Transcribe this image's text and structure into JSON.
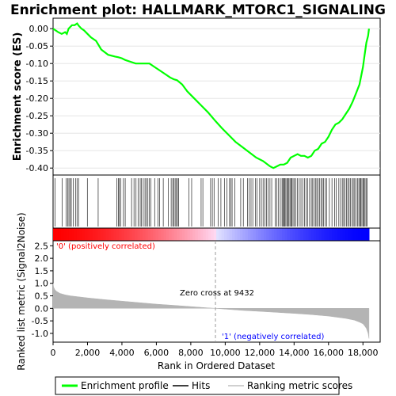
{
  "chart_data": {
    "type": "line",
    "title": "Enrichment plot: HALLMARK_MTORC1_SIGNALING",
    "top_panel": {
      "ylabel": "Enrichment score (ES)",
      "ylim": [
        -0.42,
        0.03
      ],
      "yticks": [
        0.0,
        -0.05,
        -0.1,
        -0.15,
        -0.2,
        -0.25,
        -0.3,
        -0.35,
        -0.4
      ],
      "ytick_labels": [
        "0.00",
        "-0.05",
        "-0.10",
        "-0.15",
        "-0.20",
        "-0.25",
        "-0.30",
        "-0.35",
        "-0.40"
      ],
      "series": [
        {
          "name": "Enrichment profile",
          "color": "#00ff00",
          "x": [
            0,
            300,
            500,
            700,
            800,
            900,
            1000,
            1100,
            1250,
            1400,
            1500,
            1650,
            1800,
            2000,
            2200,
            2500,
            2800,
            3200,
            3600,
            3800,
            4000,
            4200,
            4500,
            4800,
            5000,
            5300,
            5600,
            5900,
            6200,
            6500,
            6800,
            7000,
            7200,
            7500,
            7800,
            8200,
            8600,
            9000,
            9432,
            9800,
            10200,
            10600,
            11000,
            11400,
            11800,
            12200,
            12600,
            12800,
            13000,
            13200,
            13400,
            13600,
            13800,
            14000,
            14200,
            14400,
            14600,
            14800,
            15000,
            15200,
            15400,
            15600,
            15800,
            16000,
            16200,
            16400,
            16600,
            16800,
            17000,
            17200,
            17400,
            17600,
            17800,
            17900,
            18000,
            18100,
            18200,
            18300,
            18350
          ],
          "y": [
            0.0,
            -0.01,
            -0.015,
            -0.01,
            -0.015,
            0.0,
            0.005,
            0.01,
            0.01,
            0.015,
            0.008,
            0.0,
            -0.005,
            -0.015,
            -0.025,
            -0.035,
            -0.06,
            -0.075,
            -0.08,
            -0.082,
            -0.085,
            -0.09,
            -0.095,
            -0.1,
            -0.1,
            -0.1,
            -0.1,
            -0.11,
            -0.12,
            -0.13,
            -0.14,
            -0.145,
            -0.148,
            -0.16,
            -0.18,
            -0.2,
            -0.22,
            -0.24,
            -0.265,
            -0.285,
            -0.305,
            -0.325,
            -0.34,
            -0.355,
            -0.37,
            -0.38,
            -0.395,
            -0.4,
            -0.395,
            -0.39,
            -0.39,
            -0.385,
            -0.37,
            -0.365,
            -0.36,
            -0.365,
            -0.365,
            -0.37,
            -0.365,
            -0.35,
            -0.345,
            -0.33,
            -0.325,
            -0.31,
            -0.29,
            -0.275,
            -0.27,
            -0.26,
            -0.245,
            -0.23,
            -0.21,
            -0.185,
            -0.16,
            -0.135,
            -0.11,
            -0.075,
            -0.04,
            -0.02,
            0.0
          ]
        }
      ]
    },
    "hits": {
      "name": "Hits",
      "color": "#000000",
      "positions": [
        120,
        520,
        760,
        850,
        920,
        990,
        1060,
        1180,
        1300,
        1390,
        1480,
        1990,
        2620,
        3700,
        3790,
        3850,
        3930,
        4090,
        4190,
        4560,
        4700,
        4820,
        4950,
        5060,
        5130,
        5240,
        5340,
        5420,
        5510,
        5590,
        5680,
        5900,
        6100,
        6190,
        6400,
        6700,
        6860,
        6950,
        7020,
        7090,
        7160,
        7230,
        7290,
        7900,
        8050,
        8600,
        8700,
        9150,
        9250,
        9350,
        9600,
        9750,
        9950,
        10100,
        10250,
        10320,
        10400,
        10550,
        10900,
        11050,
        11300,
        11400,
        11500,
        11600,
        11750,
        11850,
        12000,
        12100,
        12200,
        12300,
        12400,
        12500,
        12600,
        12700,
        12900,
        13000,
        13100,
        13200,
        13300,
        13350,
        13400,
        13460,
        13520,
        13580,
        13640,
        13700,
        13760,
        13820,
        13880,
        13940,
        14000,
        14100,
        14200,
        14300,
        14400,
        14500,
        14600,
        14700,
        14800,
        14900,
        15000,
        15080,
        15160,
        15240,
        15320,
        15400,
        15480,
        15560,
        15640,
        15720,
        15800,
        15900,
        16050,
        16200,
        16350,
        16450,
        16600,
        16700,
        16800,
        16880,
        16960,
        17040,
        17120,
        17200,
        17280,
        17360,
        17440,
        17520,
        17600,
        17680,
        17760,
        17820,
        17880,
        17940,
        18000,
        18060,
        18120,
        18180,
        18240
      ]
    },
    "ranked_metric": {
      "name": "Ranking metric scores",
      "ylabel": "Ranked list metric (Signal2Noise)",
      "ylim": [
        -1.35,
        2.7
      ],
      "yticks": [
        2.5,
        2.0,
        1.5,
        1.0,
        0.5,
        0.0,
        -0.5,
        -1.0
      ],
      "ytick_labels": [
        "2.5",
        "2.0",
        "1.5",
        "1.0",
        "0.5",
        "0.0",
        "-0.5",
        "-1.0"
      ],
      "x": [
        0,
        30,
        100,
        200,
        400,
        700,
        1000,
        2000,
        3000,
        4000,
        5000,
        6000,
        7000,
        8000,
        9000,
        9432,
        10000,
        11000,
        12000,
        13000,
        14000,
        15000,
        16000,
        17000,
        17500,
        17800,
        18000,
        18100,
        18200,
        18300,
        18350
      ],
      "values": [
        1.0,
        0.85,
        0.75,
        0.68,
        0.6,
        0.54,
        0.5,
        0.42,
        0.35,
        0.29,
        0.23,
        0.17,
        0.12,
        0.07,
        0.02,
        0.0,
        -0.03,
        -0.08,
        -0.12,
        -0.16,
        -0.2,
        -0.25,
        -0.31,
        -0.4,
        -0.47,
        -0.55,
        -0.62,
        -0.7,
        -0.8,
        -1.0,
        -1.2
      ]
    },
    "xaxis": {
      "label": "Rank in Ordered Dataset",
      "xlim": [
        0,
        19000
      ],
      "ticks": [
        0,
        2000,
        4000,
        6000,
        8000,
        10000,
        12000,
        14000,
        16000,
        18000
      ],
      "tick_labels": [
        "0",
        "2,000",
        "4,000",
        "6,000",
        "8,000",
        "10,000",
        "12,000",
        "14,000",
        "16,000",
        "18,000"
      ],
      "n_genes": 18350
    },
    "zero_cross": 9432,
    "annotations": {
      "positive": "'0' (positively correlated)",
      "negative": "'1' (negatively correlated)",
      "zero_cross": "Zero cross at 9432",
      "positive_color": "#ff0000",
      "negative_color": "#0000ff"
    },
    "legend": {
      "position": "bottom",
      "items": [
        {
          "label": "Enrichment profile",
          "color": "#00ff00"
        },
        {
          "label": "Hits",
          "color": "#000000"
        },
        {
          "label": "Ranking metric scores",
          "color": "#c0c0c0"
        }
      ]
    }
  }
}
